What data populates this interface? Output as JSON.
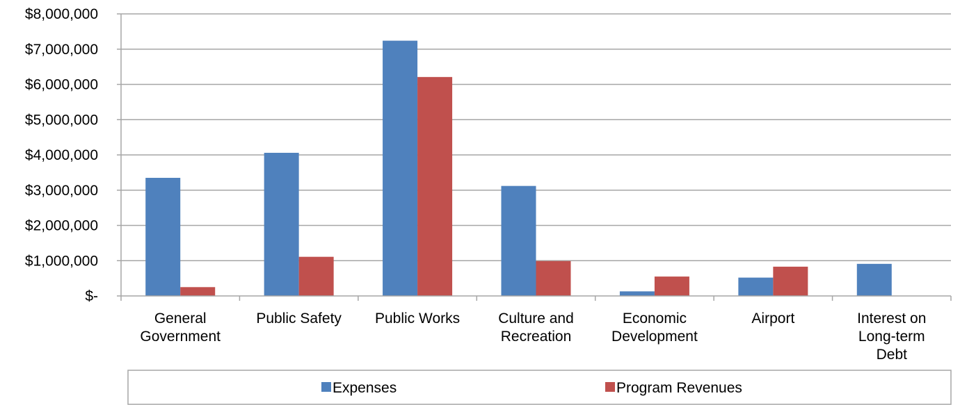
{
  "chart_data": {
    "type": "bar",
    "categories": [
      [
        "General",
        "Government"
      ],
      [
        "Public Safety"
      ],
      [
        "Public Works"
      ],
      [
        "Culture and",
        "Recreation"
      ],
      [
        "Economic",
        "Development"
      ],
      [
        "Airport"
      ],
      [
        "Interest on",
        "Long-term",
        "Debt"
      ]
    ],
    "series": [
      {
        "name": "Expenses",
        "color": "#4F81BD",
        "values": [
          3350000,
          4060000,
          7240000,
          3120000,
          130000,
          520000,
          910000
        ]
      },
      {
        "name": "Program Revenues",
        "color": "#C0504D",
        "values": [
          250000,
          1110000,
          6210000,
          990000,
          550000,
          830000,
          0
        ]
      }
    ],
    "ylim": [
      0,
      8000000
    ],
    "yticks": [
      0,
      1000000,
      2000000,
      3000000,
      4000000,
      5000000,
      6000000,
      7000000,
      8000000
    ],
    "ytick_labels": [
      "$-",
      "$1,000,000",
      "$2,000,000",
      "$3,000,000",
      "$4,000,000",
      "$5,000,000",
      "$6,000,000",
      "$7,000,000",
      "$8,000,000"
    ],
    "grid": true,
    "legend": "bottom"
  }
}
